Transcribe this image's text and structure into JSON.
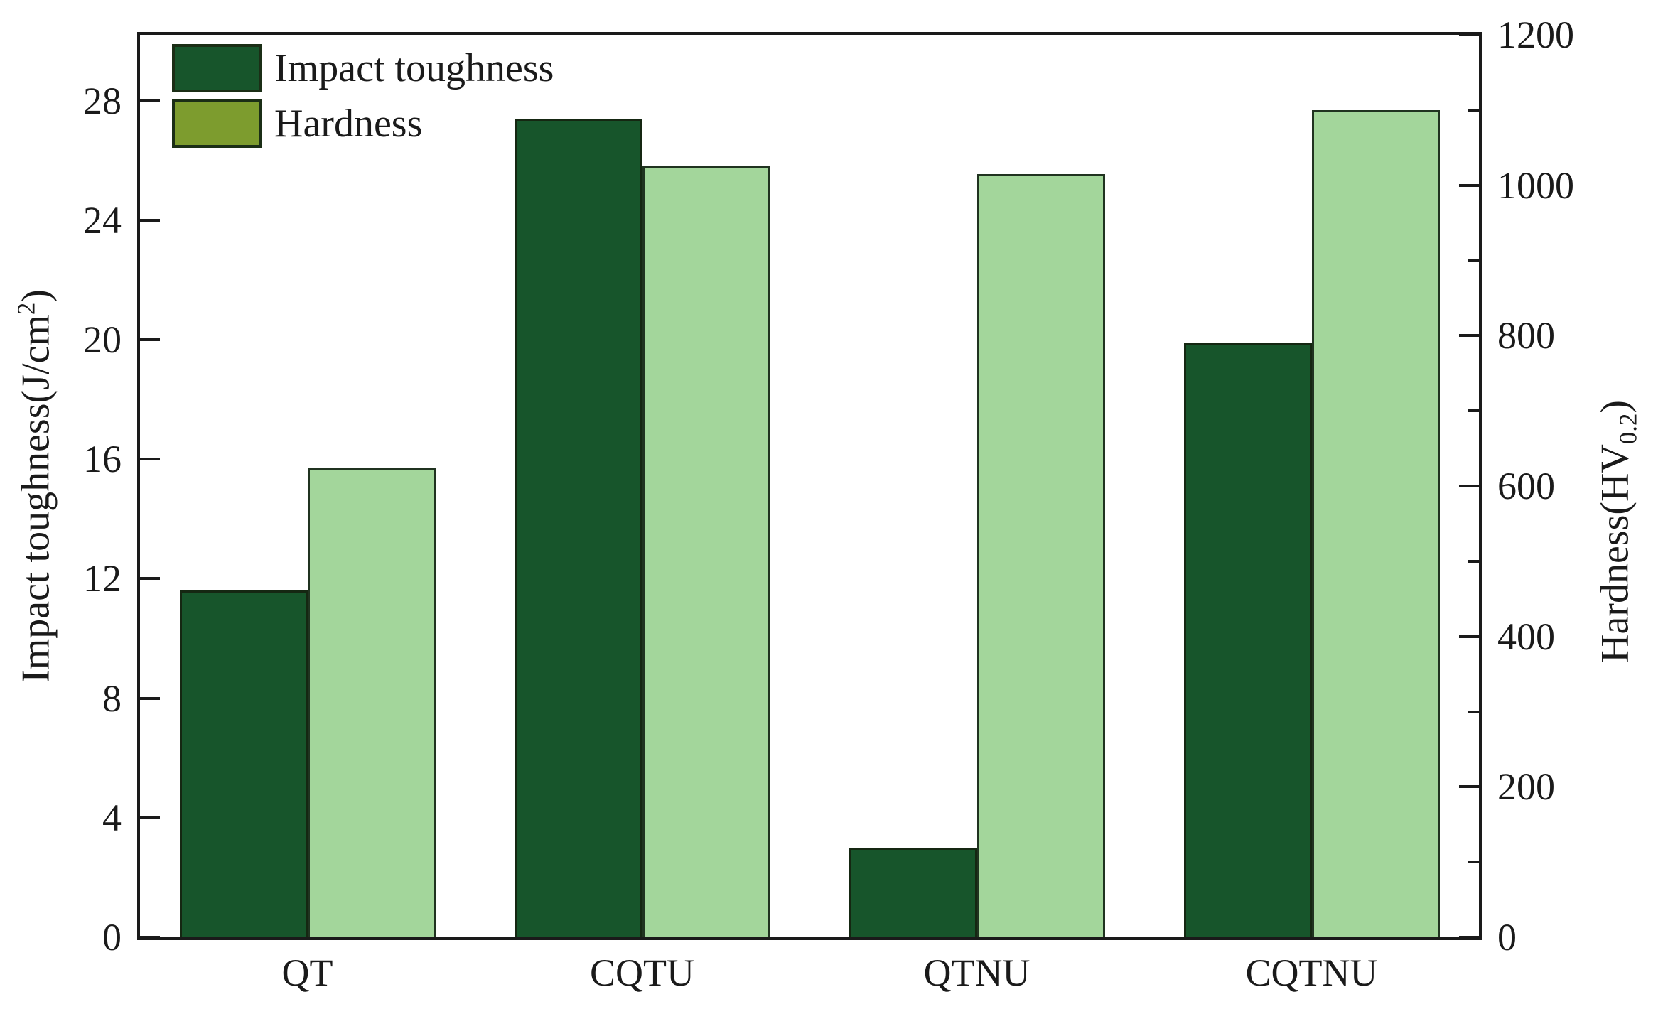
{
  "figure": {
    "background": "#ffffff",
    "frame_color": "#1a1a1a",
    "text_color": "#1a1a1a"
  },
  "chart_data": {
    "type": "bar",
    "title": "",
    "categories": [
      "QT",
      "CQTU",
      "QTNU",
      "CQTNU"
    ],
    "series": [
      {
        "name": "Impact toughness",
        "axis": "left",
        "bar_color": "#17552b",
        "bar_border": "#152712",
        "legend_color": "#17552b",
        "values": [
          11.6,
          27.4,
          3.0,
          19.9
        ]
      },
      {
        "name": "Hardness",
        "axis": "right",
        "bar_color": "#a3d69b",
        "bar_border": "#203320",
        "legend_color": "#7d9c2e",
        "values": [
          625,
          1025,
          1015,
          1100
        ]
      }
    ],
    "left_axis": {
      "title": "Impact toughness(J/cm²)",
      "title_main": "Impact toughness(J/cm",
      "title_sup": "2",
      "title_close": ")",
      "ticks": [
        0,
        4,
        8,
        12,
        16,
        20,
        24,
        28
      ],
      "range": [
        0,
        30.2
      ]
    },
    "right_axis": {
      "title": "Hardness(HV0.2)",
      "title_main": "Hardness(HV",
      "title_sub": "0.2",
      "title_close": ")",
      "ticks": [
        0,
        200,
        400,
        600,
        800,
        1000,
        1200
      ],
      "minor_ticks": [
        100,
        300,
        500,
        700,
        900,
        1100
      ],
      "range": [
        0,
        1200
      ]
    },
    "legend": {
      "position": "top-left",
      "items": [
        {
          "label": "Impact toughness",
          "color": "#17552b"
        },
        {
          "label": "Hardness",
          "color": "#7d9c2e"
        }
      ]
    },
    "grid": false
  }
}
